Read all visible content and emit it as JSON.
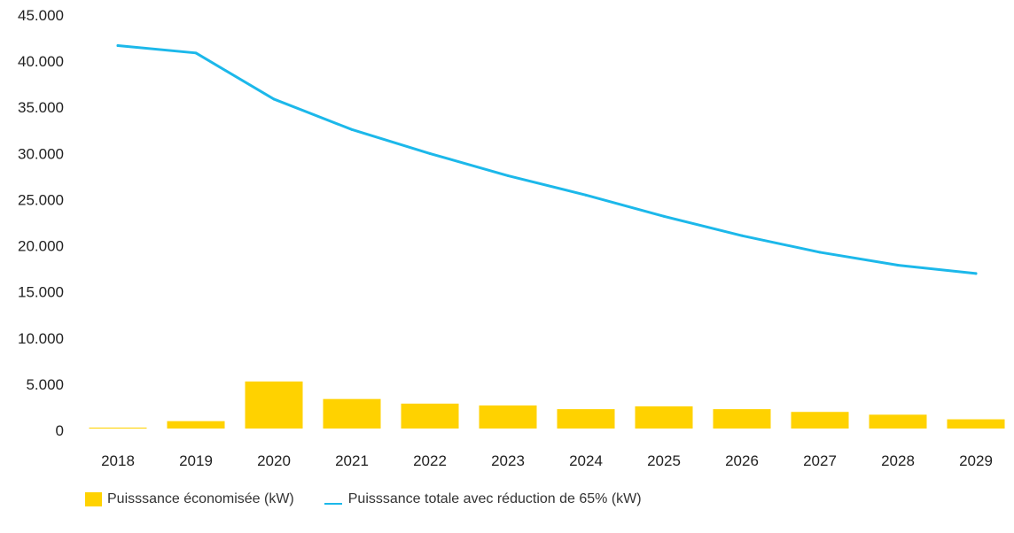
{
  "chart_data": {
    "type": "bar+line",
    "title": "",
    "xlabel": "",
    "ylabel": "",
    "categories": [
      "2018",
      "2019",
      "2020",
      "2021",
      "2022",
      "2023",
      "2024",
      "2025",
      "2026",
      "2027",
      "2028",
      "2029"
    ],
    "ylim": [
      0,
      45000
    ],
    "yticks": [
      0,
      5000,
      10000,
      15000,
      20000,
      25000,
      30000,
      35000,
      40000,
      45000
    ],
    "ytick_labels": [
      "0",
      "5.000",
      "10.000",
      "15.000",
      "20.000",
      "25.000",
      "30.000",
      "35.000",
      "40.000",
      "45.000"
    ],
    "grid": false,
    "legend_position": "bottom-left",
    "series": [
      {
        "name": "Puisssance économisée (kW)",
        "type": "bar",
        "color": "#FFD200",
        "values": [
          100,
          800,
          5100,
          3200,
          2700,
          2500,
          2100,
          2400,
          2100,
          1800,
          1500,
          1000
        ]
      },
      {
        "name": "Puisssance totale avec réduction de 65% (kW)",
        "type": "line",
        "color": "#1CB8EA",
        "values": [
          41500,
          40700,
          35700,
          32400,
          29800,
          27400,
          25300,
          23000,
          20900,
          19100,
          17700,
          16800
        ]
      }
    ]
  }
}
